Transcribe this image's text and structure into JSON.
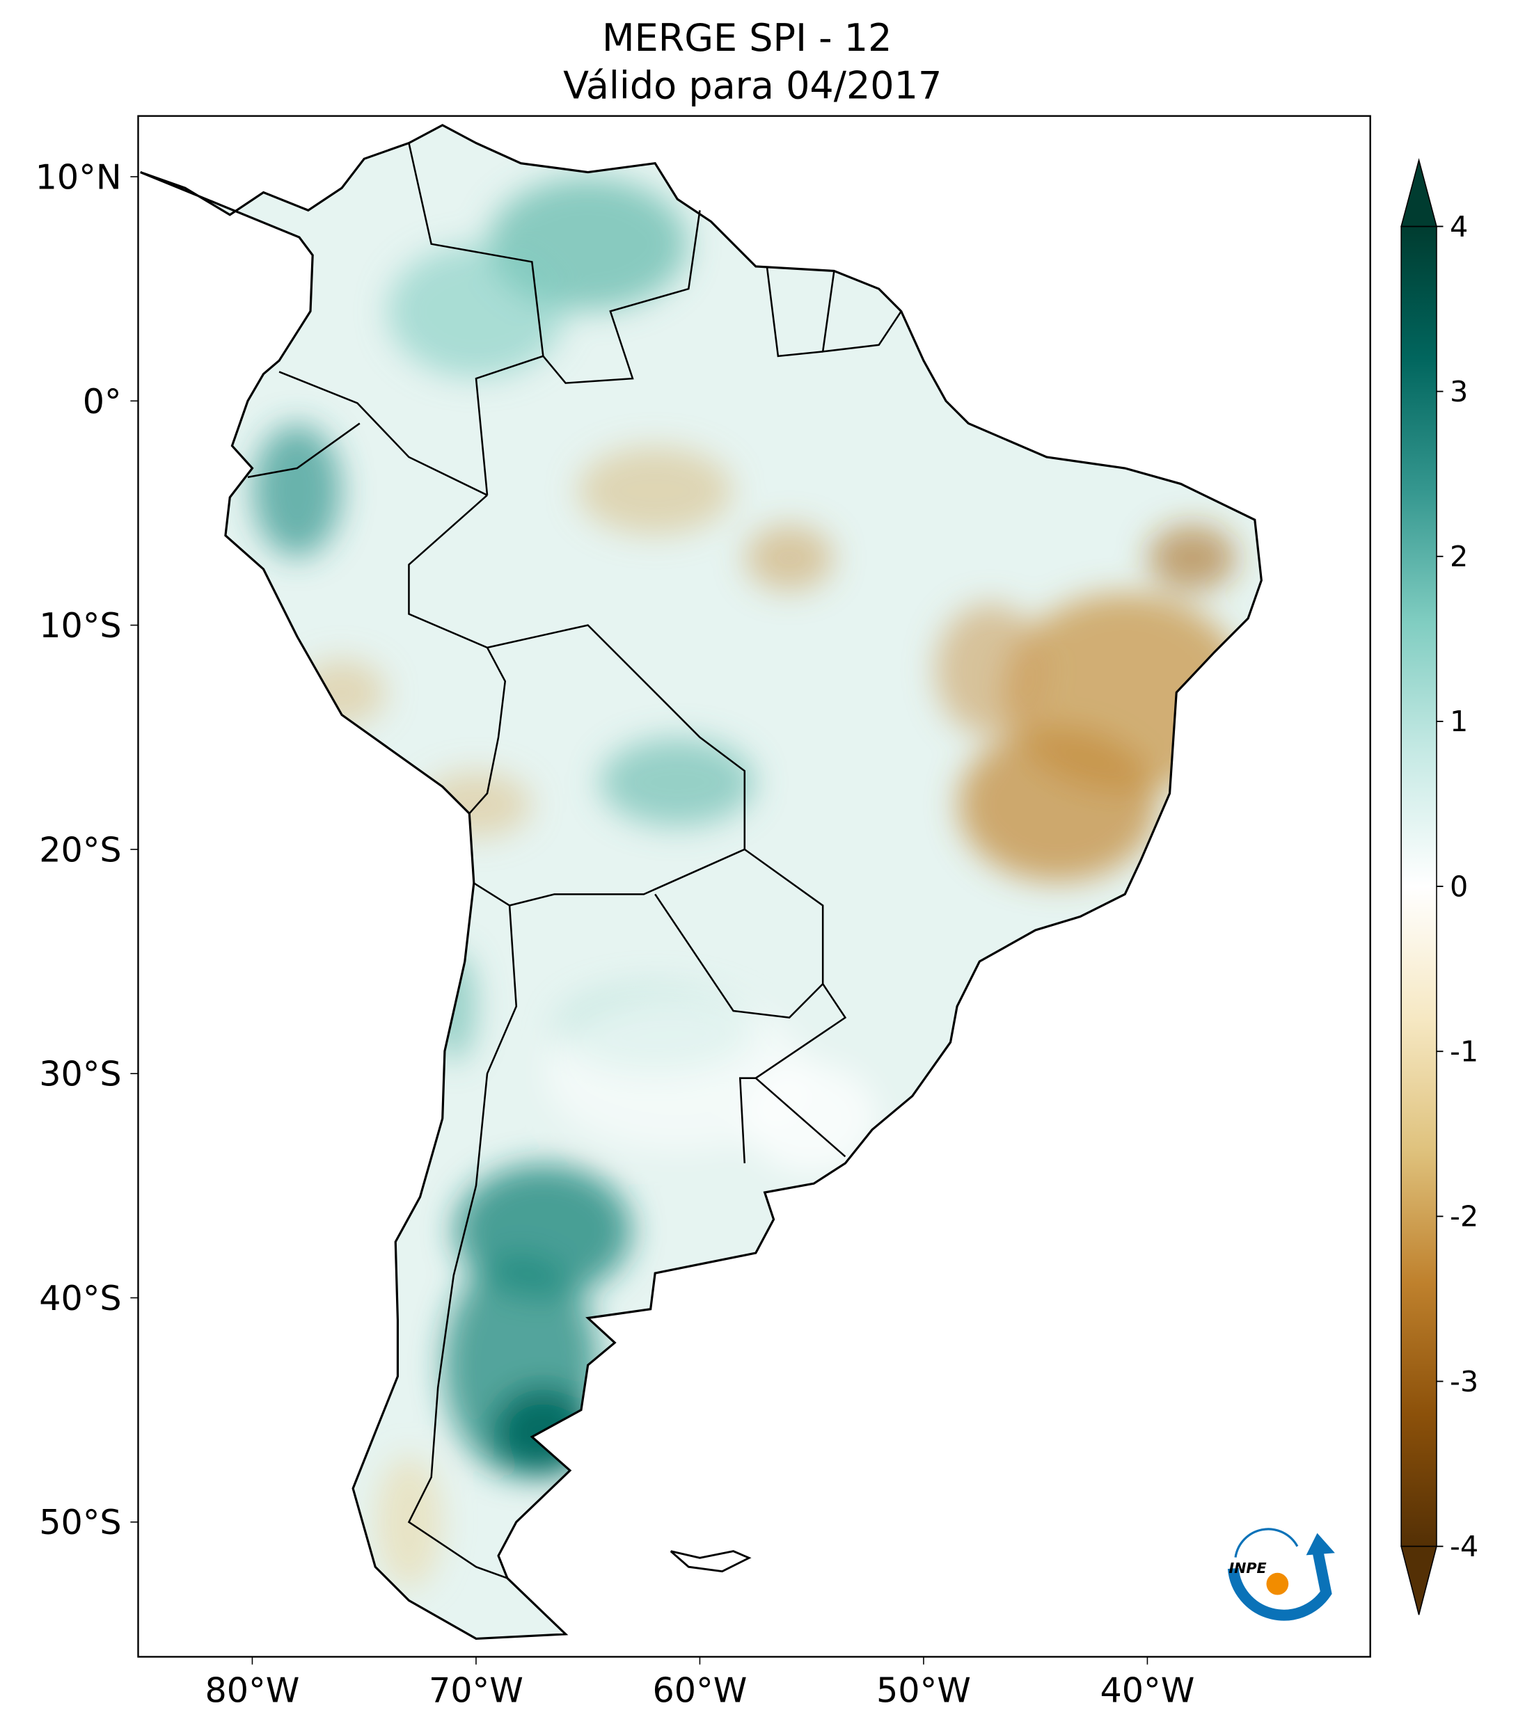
{
  "title": {
    "line1": "MERGE   SPI - 12",
    "line2": "Válido para 04/2017"
  },
  "map": {
    "lat_labels": [
      "10°N",
      "0°",
      "10°S",
      "20°S",
      "30°S",
      "40°S",
      "50°S"
    ],
    "lat_values": [
      10,
      0,
      -10,
      -20,
      -30,
      -40,
      -50
    ],
    "lon_labels": [
      "80°W",
      "70°W",
      "60°W",
      "50°W",
      "40°W"
    ],
    "lon_values": [
      -80,
      -70,
      -60,
      -50,
      -40
    ],
    "extent": {
      "lon_min": -85,
      "lon_max": -30,
      "lat_min": -56,
      "lat_max": 12.7
    }
  },
  "colorbar": {
    "ticks": [
      "4",
      "3",
      "2",
      "1",
      "0",
      "-1",
      "-2",
      "-3",
      "-4"
    ],
    "range": [
      -4,
      4
    ],
    "extend": "both",
    "colormap": "BrBG",
    "colors": [
      "#543005",
      "#8c510a",
      "#bf812d",
      "#dfc27d",
      "#f6e8c3",
      "#ffffff",
      "#c7eae5",
      "#80cdc1",
      "#35978f",
      "#01665e",
      "#003c30"
    ]
  },
  "logo": {
    "text": "INPE",
    "colors": {
      "blue": "#0a72b8",
      "orange": "#f28c00"
    }
  }
}
